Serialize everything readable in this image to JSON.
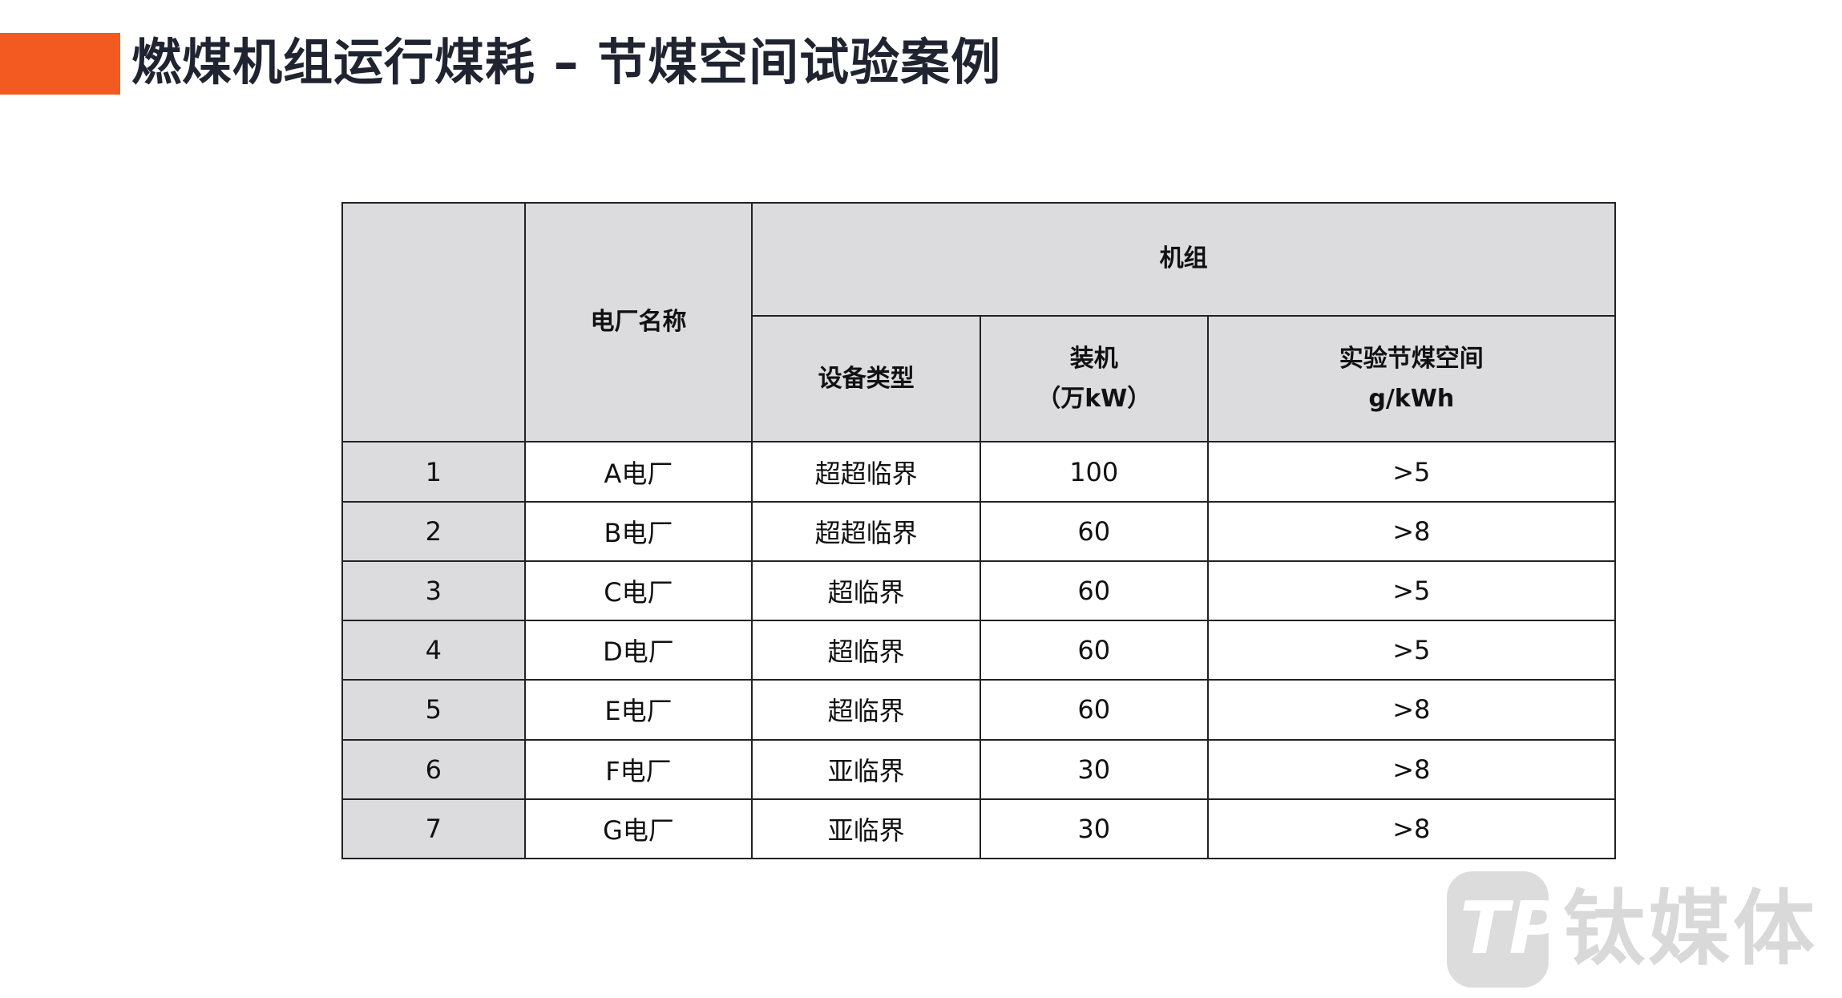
{
  "title": "燃煤机组运行煤耗 – 节煤空间试验案例",
  "accent_color": "#f25a22",
  "table": {
    "headers": {
      "plant_name": "电厂名称",
      "unit_group": "机组",
      "equipment_type": "设备类型",
      "capacity_line1": "装机",
      "capacity_line2": "（万kW）",
      "saving_line1": "实验节煤空间",
      "saving_line2": "g/kWh"
    },
    "rows": [
      {
        "no": "1",
        "plant": "A电厂",
        "type": "超超临界",
        "capacity": "100",
        "saving": ">5"
      },
      {
        "no": "2",
        "plant": "B电厂",
        "type": "超超临界",
        "capacity": "60",
        "saving": ">8"
      },
      {
        "no": "3",
        "plant": "C电厂",
        "type": "超临界",
        "capacity": "60",
        "saving": ">5"
      },
      {
        "no": "4",
        "plant": "D电厂",
        "type": "超临界",
        "capacity": "60",
        "saving": ">5"
      },
      {
        "no": "5",
        "plant": "E电厂",
        "type": "超临界",
        "capacity": "60",
        "saving": ">8"
      },
      {
        "no": "6",
        "plant": "F电厂",
        "type": "亚临界",
        "capacity": "30",
        "saving": ">8"
      },
      {
        "no": "7",
        "plant": "G电厂",
        "type": "亚临界",
        "capacity": "30",
        "saving": ">8"
      }
    ]
  },
  "watermark": {
    "logo_letters": "TP",
    "text": "钛媒体"
  }
}
